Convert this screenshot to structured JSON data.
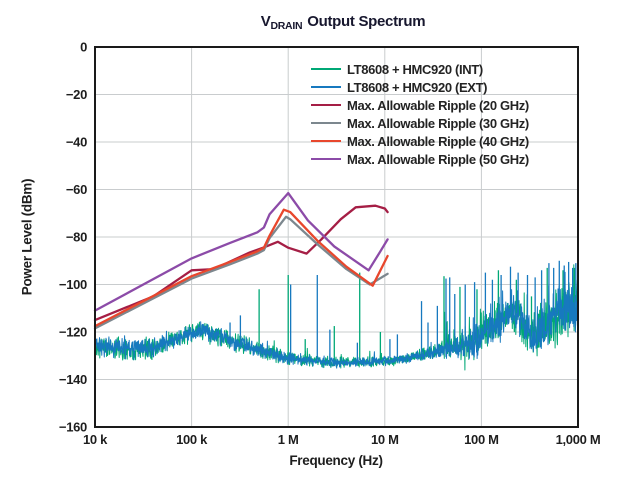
{
  "title": {
    "prefix": "V",
    "subscript": "DRAIN",
    "rest": "Output Spectrum"
  },
  "axes": {
    "x_label": "Frequency (Hz)",
    "y_label": "Power Level (dBm)",
    "x_ticks": [
      {
        "f": 10000.0,
        "label": "10 k"
      },
      {
        "f": 100000.0,
        "label": "100 k"
      },
      {
        "f": 1000000.0,
        "label": "1 M"
      },
      {
        "f": 10000000.0,
        "label": "10 M"
      },
      {
        "f": 100000000.0,
        "label": "100 M"
      },
      {
        "f": 1000000000.0,
        "label": "1,000 M"
      }
    ],
    "y_ticks": [
      {
        "v": 0,
        "label": "0"
      },
      {
        "v": -20,
        "label": "−20"
      },
      {
        "v": -40,
        "label": "−40"
      },
      {
        "v": -60,
        "label": "−60"
      },
      {
        "v": -80,
        "label": "−80"
      },
      {
        "v": -100,
        "label": "−100"
      },
      {
        "v": -120,
        "label": "−120"
      },
      {
        "v": -140,
        "label": "−140"
      },
      {
        "v": -160,
        "label": "−160"
      }
    ]
  },
  "colors": {
    "grid": "#c9ccce",
    "frame": "#1a1a1a",
    "text": "#1e1e1e",
    "title": "#17172e",
    "background": "#ffffff"
  },
  "chart_data": {
    "type": "line",
    "title": "VDRAIN Output Spectrum",
    "xlabel": "Frequency (Hz)",
    "ylabel": "Power Level (dBm)",
    "x_scale": "log",
    "xlim": [
      10000.0,
      1000000000.0
    ],
    "ylim": [
      -160,
      0
    ],
    "grid": true,
    "legend_position": "top-right-inside",
    "noise_envelope": [
      [
        10000.0,
        -126,
        3.5
      ],
      [
        25000.0,
        -127.5,
        3.5
      ],
      [
        40000.0,
        -126.5,
        3.5
      ],
      [
        70000.0,
        -122.5,
        3
      ],
      [
        120000.0,
        -119.5,
        3
      ],
      [
        180000.0,
        -121.5,
        3
      ],
      [
        300000.0,
        -124.5,
        3
      ],
      [
        500000.0,
        -127.5,
        2.5
      ],
      [
        800000.0,
        -130,
        2.5
      ],
      [
        1200000.0,
        -131.5,
        2
      ],
      [
        2000000.0,
        -132.5,
        2
      ],
      [
        4000000.0,
        -133,
        1.8
      ],
      [
        8000000.0,
        -132.5,
        1.8
      ],
      [
        15000000.0,
        -131.5,
        1.8
      ],
      [
        25000000.0,
        -129.5,
        2
      ],
      [
        35000000.0,
        -128,
        2.5
      ],
      [
        45000000.0,
        -127,
        3.5
      ],
      [
        60000000.0,
        -126,
        4.5
      ],
      [
        80000000.0,
        -125,
        5.5
      ],
      [
        100000000.0,
        -123,
        6
      ],
      [
        150000000.0,
        -116,
        6
      ],
      [
        200000000.0,
        -112.5,
        5
      ],
      [
        250000000.0,
        -115,
        6
      ],
      [
        320000000.0,
        -122,
        7
      ],
      [
        450000000.0,
        -118,
        8
      ],
      [
        600000000.0,
        -113,
        9
      ],
      [
        800000000.0,
        -111,
        9
      ],
      [
        1000000000.0,
        -110,
        9
      ]
    ],
    "series": [
      {
        "key": "int",
        "name": "LT8608 + HMC920 (INT)",
        "color": "#00A876",
        "type": "noise_spectrum",
        "seed": 11,
        "spread_scale": 1.12,
        "spikes": [
          [
            500000.0,
            -102
          ],
          [
            1000000.0,
            -96
          ],
          [
            1500000.0,
            -123
          ],
          [
            3000000.0,
            -117.5
          ],
          [
            5500000.0,
            -95
          ],
          [
            9000000.0,
            -120
          ],
          [
            41000000.0,
            -96.5
          ],
          [
            60000000.0,
            -101
          ],
          [
            90000000.0,
            -102
          ],
          [
            150000000.0,
            -94
          ],
          [
            230000000.0,
            -98
          ],
          [
            330000000.0,
            -105
          ],
          [
            480000000.0,
            -93
          ],
          [
            700000000.0,
            -94
          ],
          [
            920000000.0,
            -93
          ]
        ]
      },
      {
        "key": "ext",
        "name": "LT8608 + HMC920 (EXT)",
        "color": "#1779BF",
        "type": "noise_spectrum",
        "seed": 4,
        "spread_scale": 1.0,
        "spikes": [
          [
            250000.0,
            -116
          ],
          [
            320000.0,
            -113
          ],
          [
            1060000.0,
            -100
          ],
          [
            2000000.0,
            -96
          ],
          [
            2700000.0,
            -119
          ],
          [
            5200000.0,
            -124.5
          ],
          [
            11300000.0,
            -123
          ],
          [
            13500000.0,
            -121
          ],
          [
            24000000.0,
            -107
          ],
          [
            28000000.0,
            -116
          ],
          [
            35000000.0,
            -109
          ],
          [
            43000000.0,
            -97.5
          ],
          [
            47000000.0,
            -97
          ],
          [
            53000000.0,
            -104
          ],
          [
            68000000.0,
            -100
          ],
          [
            85000000.0,
            -99
          ],
          [
            110000000.0,
            -95
          ],
          [
            130000000.0,
            -98
          ],
          [
            160000000.0,
            -96
          ],
          [
            200000000.0,
            -92.5
          ],
          [
            240000000.0,
            -95
          ],
          [
            300000000.0,
            -96
          ],
          [
            360000000.0,
            -97
          ],
          [
            420000000.0,
            -94
          ],
          [
            500000000.0,
            -91
          ],
          [
            560000000.0,
            -93
          ],
          [
            640000000.0,
            -90
          ],
          [
            720000000.0,
            -92
          ],
          [
            800000000.0,
            -90.5
          ],
          [
            880000000.0,
            -93
          ],
          [
            950000000.0,
            -91
          ]
        ]
      },
      {
        "key": "ripple_20ghz",
        "name": "Max. Allowable Ripple (20 GHz)",
        "color": "#A51E45",
        "type": "line",
        "points": [
          [
            10000.0,
            -115
          ],
          [
            40000.0,
            -105
          ],
          [
            100000.0,
            -94
          ],
          [
            170000.0,
            -93.5
          ],
          [
            400000.0,
            -86.5
          ],
          [
            550000.0,
            -84.5
          ],
          [
            780000.0,
            -82
          ],
          [
            1000000.0,
            -84.5
          ],
          [
            1550000.0,
            -87
          ],
          [
            2200000.0,
            -81
          ],
          [
            3500000.0,
            -72.5
          ],
          [
            5000000.0,
            -67.5
          ],
          [
            8000000.0,
            -66.8
          ],
          [
            10000000.0,
            -68
          ],
          [
            10700000.0,
            -69.5
          ]
        ]
      },
      {
        "key": "ripple_30ghz",
        "name": "Max. Allowable Ripple (30 GHz)",
        "color": "#7C878E",
        "type": "line",
        "points": [
          [
            10000.0,
            -118.5
          ],
          [
            100000.0,
            -97.5
          ],
          [
            250000.0,
            -91.5
          ],
          [
            480000.0,
            -87
          ],
          [
            560000.0,
            -85.5
          ],
          [
            640000.0,
            -80.5
          ],
          [
            950000.0,
            -71.5
          ],
          [
            1050000.0,
            -72.5
          ],
          [
            2000000.0,
            -83
          ],
          [
            4000000.0,
            -93.5
          ],
          [
            7000000.0,
            -100
          ],
          [
            10700000.0,
            -95.5
          ]
        ]
      },
      {
        "key": "ripple_40ghz",
        "name": "Max. Allowable Ripple (40 GHz)",
        "color": "#E8472D",
        "type": "line",
        "points": [
          [
            10000.0,
            -117.5
          ],
          [
            100000.0,
            -96.5
          ],
          [
            250000.0,
            -90.5
          ],
          [
            480000.0,
            -86
          ],
          [
            560000.0,
            -84.5
          ],
          [
            640000.0,
            -79.5
          ],
          [
            900000.0,
            -68.5
          ],
          [
            1050000.0,
            -69.5
          ],
          [
            2000000.0,
            -81.5
          ],
          [
            4000000.0,
            -92.5
          ],
          [
            7500000.0,
            -100.5
          ],
          [
            10700000.0,
            -88
          ]
        ]
      },
      {
        "key": "ripple_50ghz",
        "name": "Max. Allowable Ripple (50 GHz)",
        "color": "#8C4BA8",
        "type": "line",
        "points": [
          [
            10000.0,
            -111
          ],
          [
            100000.0,
            -89
          ],
          [
            250000.0,
            -82.5
          ],
          [
            480000.0,
            -78
          ],
          [
            560000.0,
            -76
          ],
          [
            640000.0,
            -70.5
          ],
          [
            1000000.0,
            -61.5
          ],
          [
            1600000.0,
            -73
          ],
          [
            3000000.0,
            -84
          ],
          [
            6800000.0,
            -94
          ],
          [
            9000000.0,
            -86
          ],
          [
            10700000.0,
            -81
          ]
        ]
      }
    ]
  }
}
